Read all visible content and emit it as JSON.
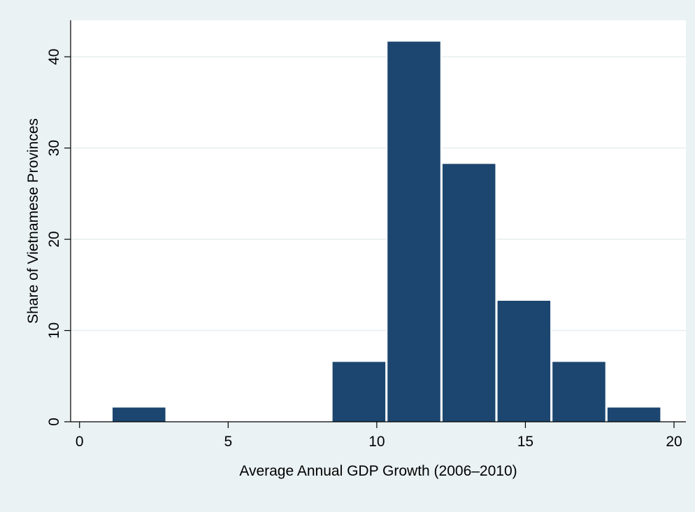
{
  "chart_data": {
    "type": "bar",
    "title": "",
    "xlabel": "Average Annual GDP Growth (2006–2010)",
    "ylabel": "Share of Vietnamese Provinces",
    "xlim": [
      -0.3,
      20.4
    ],
    "ylim": [
      0,
      44
    ],
    "x_ticks": [
      0,
      5,
      10,
      15,
      20
    ],
    "y_ticks": [
      0,
      10,
      20,
      30,
      40
    ],
    "grid": true,
    "legend": "none",
    "bins": [
      {
        "x0": 1.1,
        "x1": 2.9,
        "value": 1.6
      },
      {
        "x0": 8.5,
        "x1": 10.3,
        "value": 6.6
      },
      {
        "x0": 10.35,
        "x1": 12.15,
        "value": 41.7
      },
      {
        "x0": 12.2,
        "x1": 14.0,
        "value": 28.3
      },
      {
        "x0": 14.05,
        "x1": 15.85,
        "value": 13.3
      },
      {
        "x0": 15.9,
        "x1": 17.7,
        "value": 6.6
      },
      {
        "x0": 17.75,
        "x1": 19.55,
        "value": 1.6
      }
    ],
    "colors": {
      "bar_fill": "#1c466f",
      "bar_edge": "#ffffff",
      "plot_bg": "#ffffff",
      "outer_bg": "#eaf2f3",
      "grid": "#e6eeef",
      "axis": "#000000"
    }
  }
}
